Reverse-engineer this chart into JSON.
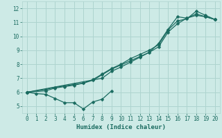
{
  "title": "",
  "xlabel": "Humidex (Indice chaleur)",
  "ylabel": "",
  "xlim": [
    -0.5,
    20.5
  ],
  "ylim": [
    4.5,
    12.5
  ],
  "yticks": [
    5,
    6,
    7,
    8,
    9,
    10,
    11,
    12
  ],
  "xticks": [
    0,
    1,
    2,
    3,
    4,
    5,
    6,
    7,
    8,
    9,
    10,
    11,
    12,
    13,
    14,
    15,
    16,
    17,
    18,
    19,
    20
  ],
  "bg_color": "#cdeae6",
  "grid_color": "#aed4cf",
  "line_color": "#1a6b60",
  "series": [
    {
      "x": [
        0,
        1,
        2,
        3,
        4,
        5,
        6,
        7,
        8,
        9
      ],
      "y": [
        6.0,
        5.9,
        5.85,
        5.55,
        5.25,
        5.25,
        4.8,
        5.3,
        5.5,
        6.1
      ]
    },
    {
      "x": [
        0,
        8,
        9,
        10,
        11,
        12,
        13,
        14,
        15,
        16,
        17,
        18,
        19,
        20
      ],
      "y": [
        6.0,
        7.0,
        7.5,
        7.8,
        8.15,
        8.5,
        8.85,
        9.5,
        10.5,
        11.4,
        11.3,
        11.5,
        11.4,
        11.2
      ]
    },
    {
      "x": [
        0,
        2,
        3,
        4,
        5,
        6,
        7,
        8,
        9,
        10,
        11,
        12,
        13,
        14,
        15,
        16,
        17,
        18,
        19,
        20
      ],
      "y": [
        6.0,
        6.2,
        6.35,
        6.45,
        6.55,
        6.65,
        6.85,
        7.25,
        7.65,
        7.95,
        8.25,
        8.55,
        8.85,
        9.25,
        10.3,
        10.9,
        11.3,
        11.6,
        11.4,
        11.2
      ]
    },
    {
      "x": [
        0,
        2,
        3,
        4,
        5,
        6,
        7,
        8,
        9,
        10,
        11,
        12,
        13,
        14,
        15,
        16,
        17,
        18,
        19,
        20
      ],
      "y": [
        6.0,
        6.1,
        6.3,
        6.4,
        6.5,
        6.65,
        6.9,
        7.3,
        7.7,
        8.0,
        8.4,
        8.7,
        9.0,
        9.4,
        10.45,
        11.1,
        11.25,
        11.8,
        11.5,
        11.2
      ]
    }
  ],
  "markersize": 2.5,
  "linewidth": 0.9
}
